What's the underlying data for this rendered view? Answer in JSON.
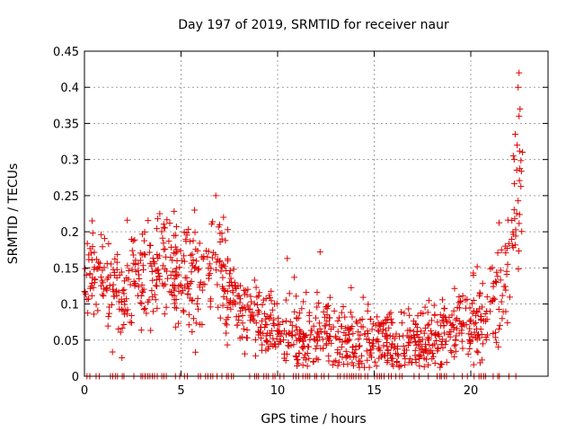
{
  "chart_data": {
    "type": "scatter",
    "title": "Day 197 of 2019, SRMTID for receiver naur",
    "xlabel": "GPS time / hours",
    "ylabel": "SRMTID / TECUs",
    "xlim": [
      0,
      24
    ],
    "ylim": [
      0,
      0.45
    ],
    "x_ticks": [
      0,
      5,
      10,
      15,
      20
    ],
    "x_tick_labels": [
      "0",
      "5",
      "10",
      "15",
      "20"
    ],
    "y_ticks": [
      0,
      0.05,
      0.1,
      0.15,
      0.2,
      0.25,
      0.3,
      0.35,
      0.4,
      0.45
    ],
    "y_tick_labels": [
      "0",
      "0.05",
      "0.1",
      "0.15",
      "0.2",
      "0.25",
      "0.3",
      "0.35",
      "0.4",
      "0.45"
    ],
    "grid": true,
    "marker": "plus",
    "series": [
      {
        "name": "SRMTID",
        "color": "#e00000",
        "trend": [
          {
            "x": 0.0,
            "y": 0.14
          },
          {
            "x": 0.5,
            "y": 0.15
          },
          {
            "x": 1.0,
            "y": 0.13
          },
          {
            "x": 1.5,
            "y": 0.11
          },
          {
            "x": 2.0,
            "y": 0.1
          },
          {
            "x": 2.5,
            "y": 0.13
          },
          {
            "x": 3.0,
            "y": 0.13
          },
          {
            "x": 3.5,
            "y": 0.14
          },
          {
            "x": 4.0,
            "y": 0.16
          },
          {
            "x": 4.5,
            "y": 0.15
          },
          {
            "x": 5.0,
            "y": 0.14
          },
          {
            "x": 5.5,
            "y": 0.15
          },
          {
            "x": 6.0,
            "y": 0.14
          },
          {
            "x": 6.5,
            "y": 0.14
          },
          {
            "x": 7.0,
            "y": 0.15
          },
          {
            "x": 7.5,
            "y": 0.12
          },
          {
            "x": 8.0,
            "y": 0.09
          },
          {
            "x": 8.5,
            "y": 0.08
          },
          {
            "x": 9.0,
            "y": 0.08
          },
          {
            "x": 9.5,
            "y": 0.07
          },
          {
            "x": 10.0,
            "y": 0.06
          },
          {
            "x": 10.5,
            "y": 0.06
          },
          {
            "x": 11.0,
            "y": 0.055
          },
          {
            "x": 11.5,
            "y": 0.055
          },
          {
            "x": 12.0,
            "y": 0.05
          },
          {
            "x": 12.5,
            "y": 0.06
          },
          {
            "x": 13.0,
            "y": 0.055
          },
          {
            "x": 13.5,
            "y": 0.05
          },
          {
            "x": 14.0,
            "y": 0.045
          },
          {
            "x": 14.5,
            "y": 0.04
          },
          {
            "x": 15.0,
            "y": 0.04
          },
          {
            "x": 15.5,
            "y": 0.045
          },
          {
            "x": 16.0,
            "y": 0.04
          },
          {
            "x": 16.5,
            "y": 0.04
          },
          {
            "x": 17.0,
            "y": 0.045
          },
          {
            "x": 17.5,
            "y": 0.05
          },
          {
            "x": 18.0,
            "y": 0.05
          },
          {
            "x": 18.5,
            "y": 0.055
          },
          {
            "x": 19.0,
            "y": 0.06
          },
          {
            "x": 19.5,
            "y": 0.065
          },
          {
            "x": 20.0,
            "y": 0.07
          },
          {
            "x": 20.5,
            "y": 0.07
          },
          {
            "x": 21.0,
            "y": 0.09
          },
          {
            "x": 21.5,
            "y": 0.11
          },
          {
            "x": 22.0,
            "y": 0.14
          },
          {
            "x": 22.3,
            "y": 0.22
          },
          {
            "x": 22.5,
            "y": 0.25
          },
          {
            "x": 22.7,
            "y": 0.26
          }
        ],
        "spread": 0.035,
        "count": 1150,
        "highlights": [
          {
            "x": 0.4,
            "y": 0.215
          },
          {
            "x": 3.9,
            "y": 0.225
          },
          {
            "x": 5.7,
            "y": 0.23
          },
          {
            "x": 6.8,
            "y": 0.25
          },
          {
            "x": 7.2,
            "y": 0.22
          },
          {
            "x": 10.5,
            "y": 0.163
          },
          {
            "x": 12.2,
            "y": 0.172
          },
          {
            "x": 22.5,
            "y": 0.42
          },
          {
            "x": 22.45,
            "y": 0.4
          },
          {
            "x": 22.55,
            "y": 0.37
          },
          {
            "x": 22.5,
            "y": 0.36
          },
          {
            "x": 22.3,
            "y": 0.335
          },
          {
            "x": 22.4,
            "y": 0.32
          },
          {
            "x": 22.2,
            "y": 0.305
          },
          {
            "x": 22.25,
            "y": 0.3
          }
        ],
        "zero_marks": {
          "x_start": 0.0,
          "x_end": 22.4,
          "step": 0.12,
          "y": 0
        }
      }
    ]
  }
}
